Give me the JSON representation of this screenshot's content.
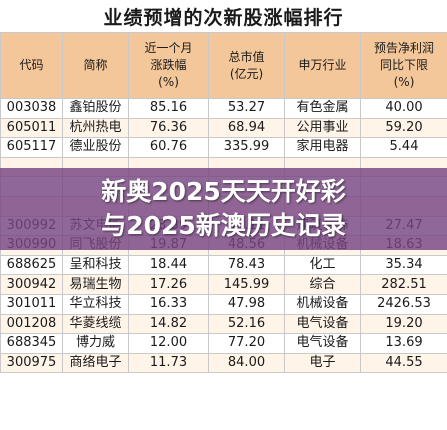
{
  "title": "业绩预增的次新股涨幅排行",
  "headers": [
    "代码",
    "简称",
    "近一个月\n涨跌幅\n(%)",
    "总市值\n(亿元)",
    "申万行业",
    "预告净利润\n同比下限\n(%)"
  ],
  "rows": [
    [
      "003038",
      "鑫铂股份",
      "85.16",
      "53.27",
      "有色金属",
      "40.00"
    ],
    [
      "605011",
      "杭州热电",
      "76.36",
      "68.94",
      "公用事业",
      "59.20"
    ],
    [
      "605117",
      "德业股份",
      "60.76",
      "335.99",
      "家用电器",
      "5.44"
    ],
    [
      "",
      "",
      "",
      "",
      "",
      ""
    ],
    [
      "",
      "",
      "",
      "",
      "",
      ""
    ],
    [
      "",
      "",
      "",
      "",
      "",
      ""
    ],
    [
      "300992",
      "苏文电能",
      "23.39",
      "49.11",
      "建筑装饰",
      "27.47"
    ],
    [
      "300990",
      "同飞股份",
      "19.87",
      "48.56",
      "机械设备",
      "18.63"
    ],
    [
      "688625",
      "呈和科技",
      "18.44",
      "78.43",
      "化工",
      "35.34"
    ],
    [
      "300942",
      "易瑞生物",
      "17.26",
      "145.99",
      "综合",
      "282.51"
    ],
    [
      "301011",
      "华立科技",
      "16.33",
      "47.98",
      "机械设备",
      "2426.53"
    ],
    [
      "001208",
      "华菱线缆",
      "14.82",
      "52.16",
      "电气设备",
      "19.20"
    ],
    [
      "688345",
      "博力威",
      "12.00",
      "77.20",
      "电气设备",
      "13.69"
    ],
    [
      "300975",
      "商络电子",
      "11.73",
      "84.00",
      "电子",
      "44.55"
    ]
  ],
  "banner": {
    "line1": "新奥2025天天开好彩",
    "line2": "与2025新澳历史记录"
  }
}
